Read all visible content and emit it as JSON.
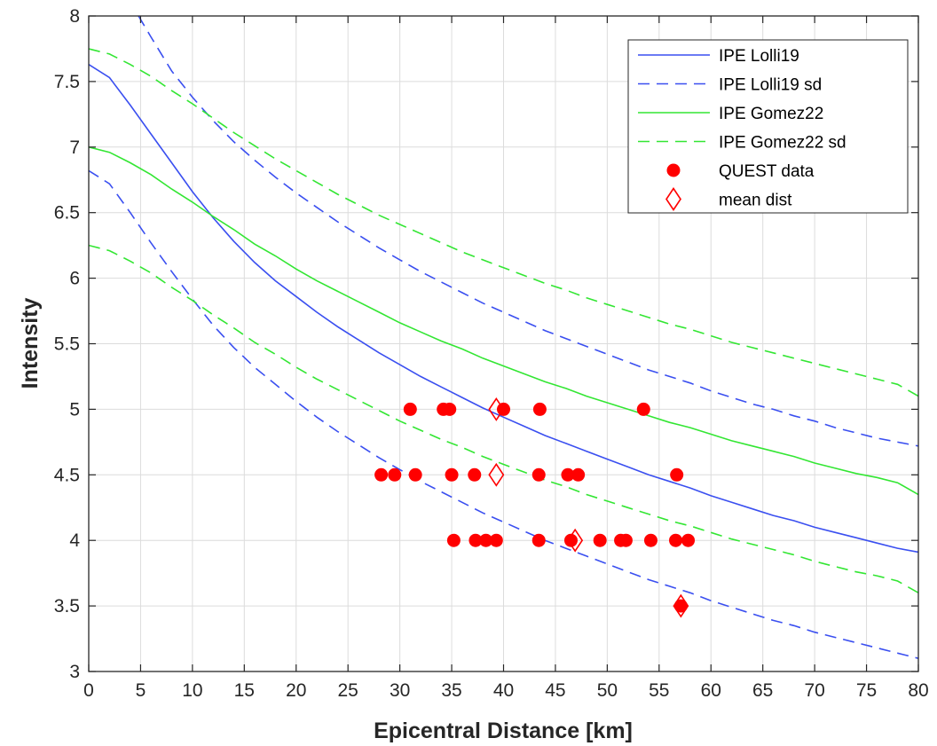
{
  "chart_data": {
    "type": "line",
    "xlabel": "Epicentral Distance [km]",
    "ylabel": "Intensity",
    "xlim": [
      0,
      80
    ],
    "ylim": [
      3,
      8
    ],
    "xticks": [
      0,
      5,
      10,
      15,
      20,
      25,
      30,
      35,
      40,
      45,
      50,
      55,
      60,
      65,
      70,
      75,
      80
    ],
    "yticks": [
      3,
      3.5,
      4,
      4.5,
      5,
      5.5,
      6,
      6.5,
      7,
      7.5,
      8
    ],
    "grid": true,
    "legend_position": "top-right",
    "series": [
      {
        "name": "IPE Lolli19",
        "kind": "line",
        "dash": "solid",
        "color": "#3a4ff0",
        "points": [
          [
            0,
            7.63
          ],
          [
            2,
            7.53
          ],
          [
            4,
            7.32
          ],
          [
            6,
            7.1
          ],
          [
            8,
            6.88
          ],
          [
            10,
            6.66
          ],
          [
            12,
            6.46
          ],
          [
            14,
            6.28
          ],
          [
            16,
            6.12
          ],
          [
            18,
            5.98
          ],
          [
            20,
            5.86
          ],
          [
            22,
            5.74
          ],
          [
            24,
            5.63
          ],
          [
            26,
            5.53
          ],
          [
            28,
            5.43
          ],
          [
            30,
            5.34
          ],
          [
            32,
            5.25
          ],
          [
            34,
            5.17
          ],
          [
            36,
            5.09
          ],
          [
            38,
            5.01
          ],
          [
            40,
            4.94
          ],
          [
            42,
            4.87
          ],
          [
            44,
            4.8
          ],
          [
            46,
            4.74
          ],
          [
            48,
            4.68
          ],
          [
            50,
            4.62
          ],
          [
            52,
            4.56
          ],
          [
            54,
            4.5
          ],
          [
            56,
            4.45
          ],
          [
            58,
            4.4
          ],
          [
            60,
            4.34
          ],
          [
            62,
            4.29
          ],
          [
            64,
            4.24
          ],
          [
            66,
            4.19
          ],
          [
            68,
            4.15
          ],
          [
            70,
            4.1
          ],
          [
            72,
            4.06
          ],
          [
            74,
            4.02
          ],
          [
            76,
            3.98
          ],
          [
            78,
            3.94
          ],
          [
            80,
            3.91
          ]
        ]
      },
      {
        "name": "IPE Lolli19 sd",
        "kind": "line",
        "dash": "dashed",
        "color": "#3a4ff0",
        "points": [
          [
            4.8,
            8.0
          ],
          [
            6,
            7.84
          ],
          [
            8,
            7.58
          ],
          [
            10,
            7.38
          ],
          [
            12,
            7.2
          ],
          [
            14,
            7.04
          ],
          [
            16,
            6.9
          ],
          [
            18,
            6.77
          ],
          [
            20,
            6.65
          ],
          [
            22,
            6.54
          ],
          [
            24,
            6.43
          ],
          [
            26,
            6.33
          ],
          [
            28,
            6.23
          ],
          [
            30,
            6.14
          ],
          [
            32,
            6.05
          ],
          [
            34,
            5.97
          ],
          [
            36,
            5.89
          ],
          [
            38,
            5.81
          ],
          [
            40,
            5.74
          ],
          [
            42,
            5.67
          ],
          [
            44,
            5.6
          ],
          [
            46,
            5.54
          ],
          [
            48,
            5.48
          ],
          [
            50,
            5.42
          ],
          [
            52,
            5.36
          ],
          [
            54,
            5.3
          ],
          [
            56,
            5.25
          ],
          [
            58,
            5.2
          ],
          [
            60,
            5.14
          ],
          [
            62,
            5.09
          ],
          [
            64,
            5.04
          ],
          [
            66,
            5.0
          ],
          [
            68,
            4.95
          ],
          [
            70,
            4.91
          ],
          [
            72,
            4.86
          ],
          [
            74,
            4.82
          ],
          [
            76,
            4.78
          ],
          [
            78,
            4.75
          ],
          [
            80,
            4.72
          ]
        ]
      },
      {
        "name": "",
        "kind": "line",
        "dash": "dashed",
        "color": "#3a4ff0",
        "points": [
          [
            0,
            6.82
          ],
          [
            2,
            6.72
          ],
          [
            4,
            6.5
          ],
          [
            6,
            6.27
          ],
          [
            8,
            6.05
          ],
          [
            10,
            5.84
          ],
          [
            12,
            5.64
          ],
          [
            14,
            5.47
          ],
          [
            16,
            5.32
          ],
          [
            18,
            5.19
          ],
          [
            20,
            5.06
          ],
          [
            22,
            4.94
          ],
          [
            24,
            4.83
          ],
          [
            26,
            4.73
          ],
          [
            28,
            4.63
          ],
          [
            30,
            4.54
          ],
          [
            32,
            4.45
          ],
          [
            34,
            4.37
          ],
          [
            36,
            4.29
          ],
          [
            38,
            4.21
          ],
          [
            40,
            4.14
          ],
          [
            42,
            4.07
          ],
          [
            44,
            4.0
          ],
          [
            46,
            3.94
          ],
          [
            48,
            3.88
          ],
          [
            50,
            3.82
          ],
          [
            52,
            3.76
          ],
          [
            54,
            3.7
          ],
          [
            56,
            3.65
          ],
          [
            58,
            3.6
          ],
          [
            60,
            3.54
          ],
          [
            62,
            3.49
          ],
          [
            64,
            3.44
          ],
          [
            66,
            3.39
          ],
          [
            68,
            3.35
          ],
          [
            70,
            3.3
          ],
          [
            72,
            3.26
          ],
          [
            74,
            3.22
          ],
          [
            76,
            3.18
          ],
          [
            78,
            3.14
          ],
          [
            80,
            3.1
          ]
        ]
      },
      {
        "name": "IPE Gomez22",
        "kind": "line",
        "dash": "solid",
        "color": "#33e633",
        "points": [
          [
            0,
            7.0
          ],
          [
            2,
            6.96
          ],
          [
            4,
            6.88
          ],
          [
            6,
            6.79
          ],
          [
            8,
            6.68
          ],
          [
            10,
            6.58
          ],
          [
            12,
            6.47
          ],
          [
            14,
            6.37
          ],
          [
            16,
            6.26
          ],
          [
            18,
            6.17
          ],
          [
            20,
            6.07
          ],
          [
            22,
            5.98
          ],
          [
            24,
            5.9
          ],
          [
            26,
            5.82
          ],
          [
            28,
            5.74
          ],
          [
            30,
            5.66
          ],
          [
            32,
            5.59
          ],
          [
            34,
            5.52
          ],
          [
            36,
            5.46
          ],
          [
            38,
            5.39
          ],
          [
            40,
            5.33
          ],
          [
            42,
            5.27
          ],
          [
            44,
            5.21
          ],
          [
            46,
            5.16
          ],
          [
            48,
            5.1
          ],
          [
            50,
            5.05
          ],
          [
            52,
            5.0
          ],
          [
            54,
            4.95
          ],
          [
            56,
            4.9
          ],
          [
            58,
            4.86
          ],
          [
            60,
            4.81
          ],
          [
            62,
            4.76
          ],
          [
            64,
            4.72
          ],
          [
            66,
            4.68
          ],
          [
            68,
            4.64
          ],
          [
            70,
            4.59
          ],
          [
            72,
            4.55
          ],
          [
            74,
            4.51
          ],
          [
            76,
            4.48
          ],
          [
            78,
            4.44
          ],
          [
            80,
            4.35
          ]
        ]
      },
      {
        "name": "IPE Gomez22 sd",
        "kind": "line",
        "dash": "dashed",
        "color": "#33e633",
        "points": [
          [
            0,
            7.75
          ],
          [
            2,
            7.71
          ],
          [
            4,
            7.63
          ],
          [
            6,
            7.54
          ],
          [
            8,
            7.43
          ],
          [
            10,
            7.33
          ],
          [
            12,
            7.22
          ],
          [
            14,
            7.11
          ],
          [
            16,
            7.01
          ],
          [
            18,
            6.91
          ],
          [
            20,
            6.82
          ],
          [
            22,
            6.73
          ],
          [
            24,
            6.64
          ],
          [
            26,
            6.56
          ],
          [
            28,
            6.48
          ],
          [
            30,
            6.41
          ],
          [
            32,
            6.34
          ],
          [
            34,
            6.27
          ],
          [
            36,
            6.2
          ],
          [
            38,
            6.14
          ],
          [
            40,
            6.08
          ],
          [
            42,
            6.02
          ],
          [
            44,
            5.96
          ],
          [
            46,
            5.91
          ],
          [
            48,
            5.85
          ],
          [
            50,
            5.8
          ],
          [
            52,
            5.75
          ],
          [
            54,
            5.7
          ],
          [
            56,
            5.65
          ],
          [
            58,
            5.61
          ],
          [
            60,
            5.56
          ],
          [
            62,
            5.51
          ],
          [
            64,
            5.47
          ],
          [
            66,
            5.43
          ],
          [
            68,
            5.39
          ],
          [
            70,
            5.35
          ],
          [
            72,
            5.31
          ],
          [
            74,
            5.27
          ],
          [
            76,
            5.23
          ],
          [
            78,
            5.19
          ],
          [
            80,
            5.1
          ]
        ]
      },
      {
        "name": "",
        "kind": "line",
        "dash": "dashed",
        "color": "#33e633",
        "points": [
          [
            0,
            6.25
          ],
          [
            2,
            6.21
          ],
          [
            4,
            6.13
          ],
          [
            6,
            6.04
          ],
          [
            8,
            5.93
          ],
          [
            10,
            5.83
          ],
          [
            12,
            5.72
          ],
          [
            14,
            5.62
          ],
          [
            16,
            5.51
          ],
          [
            18,
            5.42
          ],
          [
            20,
            5.32
          ],
          [
            22,
            5.23
          ],
          [
            24,
            5.15
          ],
          [
            26,
            5.07
          ],
          [
            28,
            4.99
          ],
          [
            30,
            4.91
          ],
          [
            32,
            4.84
          ],
          [
            34,
            4.77
          ],
          [
            36,
            4.71
          ],
          [
            38,
            4.64
          ],
          [
            40,
            4.58
          ],
          [
            42,
            4.52
          ],
          [
            44,
            4.46
          ],
          [
            46,
            4.41
          ],
          [
            48,
            4.35
          ],
          [
            50,
            4.3
          ],
          [
            52,
            4.25
          ],
          [
            54,
            4.2
          ],
          [
            56,
            4.15
          ],
          [
            58,
            4.11
          ],
          [
            60,
            4.06
          ],
          [
            62,
            4.01
          ],
          [
            64,
            3.97
          ],
          [
            66,
            3.93
          ],
          [
            68,
            3.89
          ],
          [
            70,
            3.84
          ],
          [
            72,
            3.8
          ],
          [
            74,
            3.76
          ],
          [
            76,
            3.73
          ],
          [
            78,
            3.69
          ],
          [
            80,
            3.6
          ]
        ]
      },
      {
        "name": "QUEST data",
        "kind": "scatter",
        "marker": "circle",
        "color": "#ff0000",
        "points": [
          [
            31,
            5
          ],
          [
            34.2,
            5
          ],
          [
            34.8,
            5
          ],
          [
            40,
            5
          ],
          [
            43.5,
            5
          ],
          [
            53.5,
            5
          ],
          [
            28.2,
            4.5
          ],
          [
            29.5,
            4.5
          ],
          [
            31.5,
            4.5
          ],
          [
            35,
            4.5
          ],
          [
            37.2,
            4.5
          ],
          [
            43.4,
            4.5
          ],
          [
            46.2,
            4.5
          ],
          [
            47.2,
            4.5
          ],
          [
            56.7,
            4.5
          ],
          [
            35.2,
            4
          ],
          [
            37.3,
            4
          ],
          [
            38.3,
            4
          ],
          [
            39.3,
            4
          ],
          [
            43.4,
            4
          ],
          [
            46.5,
            4
          ],
          [
            49.3,
            4
          ],
          [
            51.3,
            4
          ],
          [
            51.8,
            4
          ],
          [
            54.2,
            4
          ],
          [
            56.6,
            4
          ],
          [
            57.8,
            4
          ],
          [
            57.1,
            3.5
          ]
        ]
      },
      {
        "name": "mean dist",
        "kind": "scatter",
        "marker": "diamond",
        "color": "#ff0000",
        "points": [
          [
            39.3,
            5
          ],
          [
            39.3,
            4.5
          ],
          [
            46.9,
            4
          ],
          [
            57.1,
            3.5
          ]
        ]
      }
    ]
  }
}
